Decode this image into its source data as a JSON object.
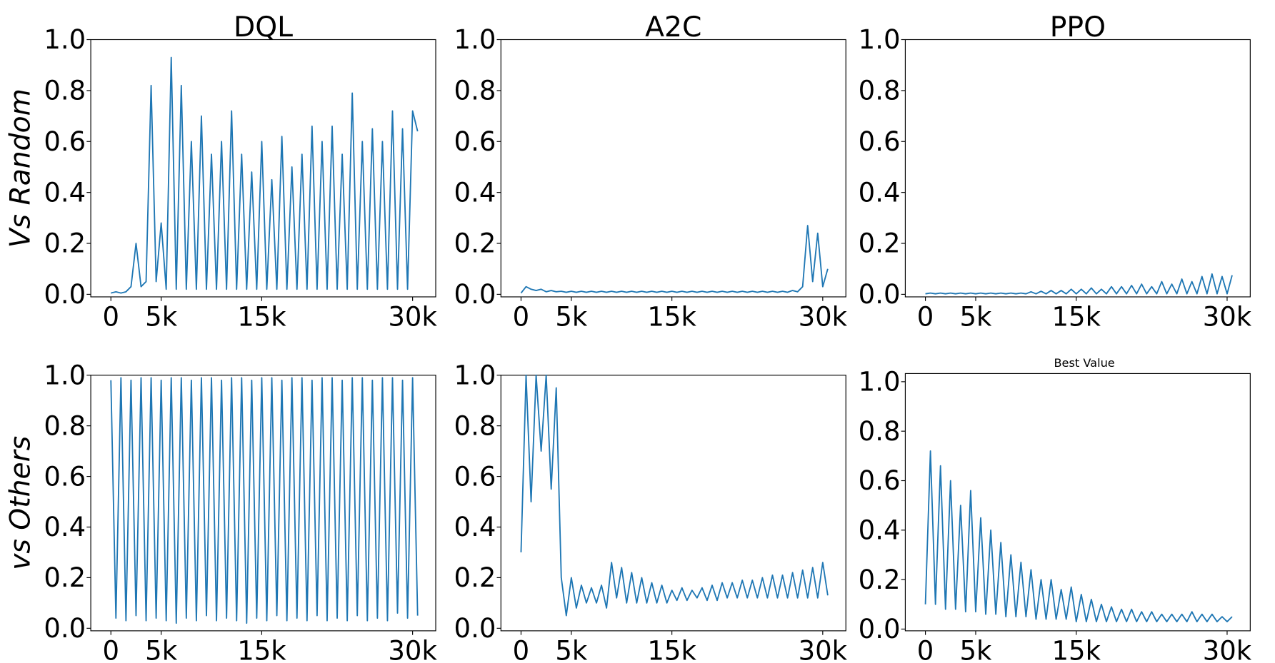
{
  "chart_data": [
    {
      "type": "line",
      "title": "DQL",
      "ylabel": "Vs Random",
      "color": "#1f77b4",
      "x": [
        0,
        500,
        1000,
        1500,
        2000,
        2500,
        3000,
        3500,
        4000,
        4500,
        5000,
        5500,
        6000,
        6500,
        7000,
        7500,
        8000,
        8500,
        9000,
        9500,
        10000,
        10500,
        11000,
        11500,
        12000,
        12500,
        13000,
        13500,
        14000,
        14500,
        15000,
        15500,
        16000,
        16500,
        17000,
        17500,
        18000,
        18500,
        19000,
        19500,
        20000,
        20500,
        21000,
        21500,
        22000,
        22500,
        23000,
        23500,
        24000,
        24500,
        25000,
        25500,
        26000,
        26500,
        27000,
        27500,
        28000,
        28500,
        29000,
        29500,
        30000,
        30500
      ],
      "values": [
        0.005,
        0.01,
        0.005,
        0.01,
        0.03,
        0.2,
        0.03,
        0.05,
        0.82,
        0.05,
        0.28,
        0.02,
        0.93,
        0.02,
        0.82,
        0.02,
        0.6,
        0.02,
        0.7,
        0.02,
        0.55,
        0.02,
        0.6,
        0.02,
        0.72,
        0.02,
        0.55,
        0.02,
        0.48,
        0.02,
        0.6,
        0.02,
        0.45,
        0.02,
        0.62,
        0.02,
        0.5,
        0.02,
        0.55,
        0.02,
        0.66,
        0.02,
        0.6,
        0.02,
        0.66,
        0.02,
        0.55,
        0.02,
        0.79,
        0.02,
        0.6,
        0.02,
        0.65,
        0.02,
        0.6,
        0.02,
        0.72,
        0.02,
        0.65,
        0.02,
        0.72,
        0.64
      ],
      "xlim": [
        -2000,
        32300
      ],
      "xticks": [
        0,
        {
          "value": 5000,
          "label": "5k"
        },
        {
          "value": 15000,
          "label": "15k"
        },
        {
          "value": 30000,
          "label": "30k"
        }
      ],
      "ylim": [
        -0.01,
        1.0
      ],
      "yticks": [
        {
          "value": 0,
          "label": "0.0"
        },
        0.2,
        0.4,
        0.6,
        0.8,
        {
          "value": 1,
          "label": "1.0"
        }
      ]
    },
    {
      "type": "line",
      "title": "A2C",
      "color": "#1f77b4",
      "x": [
        0,
        500,
        1000,
        1500,
        2000,
        2500,
        3000,
        3500,
        4000,
        4500,
        5000,
        5500,
        6000,
        6500,
        7000,
        7500,
        8000,
        8500,
        9000,
        9500,
        10000,
        10500,
        11000,
        11500,
        12000,
        12500,
        13000,
        13500,
        14000,
        14500,
        15000,
        15500,
        16000,
        16500,
        17000,
        17500,
        18000,
        18500,
        19000,
        19500,
        20000,
        20500,
        21000,
        21500,
        22000,
        22500,
        23000,
        23500,
        24000,
        24500,
        25000,
        25500,
        26000,
        26500,
        27000,
        27500,
        28000,
        28500,
        29000,
        29500,
        30000,
        30500
      ],
      "values": [
        0.005,
        0.03,
        0.02,
        0.015,
        0.02,
        0.01,
        0.015,
        0.01,
        0.012,
        0.008,
        0.012,
        0.008,
        0.012,
        0.008,
        0.012,
        0.008,
        0.012,
        0.008,
        0.012,
        0.008,
        0.012,
        0.008,
        0.012,
        0.008,
        0.012,
        0.008,
        0.012,
        0.008,
        0.012,
        0.008,
        0.012,
        0.008,
        0.012,
        0.008,
        0.012,
        0.008,
        0.012,
        0.008,
        0.012,
        0.008,
        0.012,
        0.008,
        0.012,
        0.008,
        0.012,
        0.008,
        0.012,
        0.008,
        0.012,
        0.008,
        0.012,
        0.008,
        0.012,
        0.008,
        0.015,
        0.01,
        0.03,
        0.27,
        0.05,
        0.24,
        0.03,
        0.1
      ],
      "xlim": [
        -2000,
        32300
      ],
      "xticks": [
        0,
        {
          "value": 5000,
          "label": "5k"
        },
        {
          "value": 15000,
          "label": "15k"
        },
        {
          "value": 30000,
          "label": "30k"
        }
      ],
      "ylim": [
        -0.01,
        1.0
      ],
      "yticks": [
        {
          "value": 0,
          "label": "0.0"
        },
        0.2,
        0.4,
        0.6,
        0.8,
        {
          "value": 1,
          "label": "1.0"
        }
      ]
    },
    {
      "type": "line",
      "title": "PPO",
      "color": "#1f77b4",
      "x": [
        0,
        500,
        1000,
        1500,
        2000,
        2500,
        3000,
        3500,
        4000,
        4500,
        5000,
        5500,
        6000,
        6500,
        7000,
        7500,
        8000,
        8500,
        9000,
        9500,
        10000,
        10500,
        11000,
        11500,
        12000,
        12500,
        13000,
        13500,
        14000,
        14500,
        15000,
        15500,
        16000,
        16500,
        17000,
        17500,
        18000,
        18500,
        19000,
        19500,
        20000,
        20500,
        21000,
        21500,
        22000,
        22500,
        23000,
        23500,
        24000,
        24500,
        25000,
        25500,
        26000,
        26500,
        27000,
        27500,
        28000,
        28500,
        29000,
        29500,
        30000,
        30500
      ],
      "values": [
        0.002,
        0.005,
        0.002,
        0.005,
        0.002,
        0.005,
        0.002,
        0.005,
        0.002,
        0.005,
        0.002,
        0.005,
        0.002,
        0.005,
        0.002,
        0.005,
        0.002,
        0.005,
        0.002,
        0.005,
        0.002,
        0.01,
        0.002,
        0.012,
        0.002,
        0.015,
        0.002,
        0.015,
        0.002,
        0.02,
        0.002,
        0.02,
        0.002,
        0.025,
        0.002,
        0.02,
        0.002,
        0.03,
        0.002,
        0.03,
        0.002,
        0.035,
        0.002,
        0.04,
        0.002,
        0.03,
        0.002,
        0.05,
        0.002,
        0.04,
        0.002,
        0.06,
        0.002,
        0.05,
        0.002,
        0.07,
        0.002,
        0.08,
        0.002,
        0.07,
        0.002,
        0.075
      ],
      "xlim": [
        -2000,
        32300
      ],
      "xticks": [
        0,
        {
          "value": 5000,
          "label": "5k"
        },
        {
          "value": 15000,
          "label": "15k"
        },
        {
          "value": 30000,
          "label": "30k"
        }
      ],
      "ylim": [
        -0.01,
        1.0
      ],
      "yticks": [
        {
          "value": 0,
          "label": "0.0"
        },
        0.2,
        0.4,
        0.6,
        0.8,
        {
          "value": 1,
          "label": "1.0"
        }
      ]
    },
    {
      "type": "line",
      "ylabel": "vs Others",
      "color": "#1f77b4",
      "x": [
        0,
        500,
        1000,
        1500,
        2000,
        2500,
        3000,
        3500,
        4000,
        4500,
        5000,
        5500,
        6000,
        6500,
        7000,
        7500,
        8000,
        8500,
        9000,
        9500,
        10000,
        10500,
        11000,
        11500,
        12000,
        12500,
        13000,
        13500,
        14000,
        14500,
        15000,
        15500,
        16000,
        16500,
        17000,
        17500,
        18000,
        18500,
        19000,
        19500,
        20000,
        20500,
        21000,
        21500,
        22000,
        22500,
        23000,
        23500,
        24000,
        24500,
        25000,
        25500,
        26000,
        26500,
        27000,
        27500,
        28000,
        28500,
        29000,
        29500,
        30000,
        30500
      ],
      "values": [
        0.98,
        0.04,
        0.99,
        0.03,
        0.98,
        0.05,
        0.99,
        0.03,
        0.99,
        0.04,
        0.98,
        0.03,
        0.99,
        0.02,
        0.99,
        0.04,
        0.98,
        0.03,
        0.99,
        0.05,
        0.99,
        0.03,
        0.98,
        0.04,
        0.99,
        0.03,
        0.99,
        0.02,
        0.98,
        0.04,
        0.99,
        0.03,
        0.99,
        0.05,
        0.98,
        0.03,
        0.99,
        0.04,
        0.99,
        0.03,
        0.98,
        0.05,
        0.99,
        0.03,
        0.99,
        0.04,
        0.98,
        0.03,
        0.99,
        0.05,
        0.99,
        0.03,
        0.98,
        0.04,
        0.99,
        0.03,
        0.99,
        0.06,
        0.98,
        0.04,
        0.99,
        0.05
      ],
      "xlim": [
        -2000,
        32300
      ],
      "xticks": [
        0,
        {
          "value": 5000,
          "label": "5k"
        },
        {
          "value": 15000,
          "label": "15k"
        },
        {
          "value": 30000,
          "label": "30k"
        }
      ],
      "ylim": [
        -0.01,
        1.0
      ],
      "yticks": [
        {
          "value": 0,
          "label": "0.0"
        },
        0.2,
        0.4,
        0.6,
        0.8,
        {
          "value": 1,
          "label": "1.0"
        }
      ]
    },
    {
      "type": "line",
      "color": "#1f77b4",
      "x": [
        0,
        500,
        1000,
        1500,
        2000,
        2500,
        3000,
        3500,
        4000,
        4500,
        5000,
        5500,
        6000,
        6500,
        7000,
        7500,
        8000,
        8500,
        9000,
        9500,
        10000,
        10500,
        11000,
        11500,
        12000,
        12500,
        13000,
        13500,
        14000,
        14500,
        15000,
        15500,
        16000,
        16500,
        17000,
        17500,
        18000,
        18500,
        19000,
        19500,
        20000,
        20500,
        21000,
        21500,
        22000,
        22500,
        23000,
        23500,
        24000,
        24500,
        25000,
        25500,
        26000,
        26500,
        27000,
        27500,
        28000,
        28500,
        29000,
        29500,
        30000,
        30500
      ],
      "values": [
        0.3,
        1.0,
        0.5,
        1.0,
        0.7,
        1.0,
        0.55,
        0.95,
        0.2,
        0.05,
        0.2,
        0.08,
        0.17,
        0.1,
        0.16,
        0.1,
        0.17,
        0.08,
        0.26,
        0.12,
        0.24,
        0.1,
        0.22,
        0.1,
        0.2,
        0.1,
        0.18,
        0.1,
        0.17,
        0.1,
        0.15,
        0.11,
        0.16,
        0.11,
        0.15,
        0.12,
        0.16,
        0.11,
        0.17,
        0.11,
        0.18,
        0.12,
        0.18,
        0.12,
        0.19,
        0.12,
        0.19,
        0.12,
        0.2,
        0.12,
        0.21,
        0.12,
        0.21,
        0.12,
        0.22,
        0.12,
        0.23,
        0.12,
        0.24,
        0.12,
        0.26,
        0.13
      ],
      "xlim": [
        -2000,
        32300
      ],
      "xticks": [
        0,
        {
          "value": 5000,
          "label": "5k"
        },
        {
          "value": 15000,
          "label": "15k"
        },
        {
          "value": 30000,
          "label": "30k"
        }
      ],
      "ylim": [
        -0.01,
        1.0
      ],
      "yticks": [
        {
          "value": 0,
          "label": "0.0"
        },
        0.2,
        0.4,
        0.6,
        0.8,
        {
          "value": 1,
          "label": "1.0"
        }
      ]
    },
    {
      "type": "line",
      "title": "Best Value",
      "color": "#1f77b4",
      "x": [
        0,
        500,
        1000,
        1500,
        2000,
        2500,
        3000,
        3500,
        4000,
        4500,
        5000,
        5500,
        6000,
        6500,
        7000,
        7500,
        8000,
        8500,
        9000,
        9500,
        10000,
        10500,
        11000,
        11500,
        12000,
        12500,
        13000,
        13500,
        14000,
        14500,
        15000,
        15500,
        16000,
        16500,
        17000,
        17500,
        18000,
        18500,
        19000,
        19500,
        20000,
        20500,
        21000,
        21500,
        22000,
        22500,
        23000,
        23500,
        24000,
        24500,
        25000,
        25500,
        26000,
        26500,
        27000,
        27500,
        28000,
        28500,
        29000,
        29500,
        30000,
        30500
      ],
      "values": [
        0.1,
        0.72,
        0.1,
        0.66,
        0.08,
        0.6,
        0.08,
        0.5,
        0.07,
        0.56,
        0.07,
        0.45,
        0.06,
        0.4,
        0.06,
        0.35,
        0.05,
        0.3,
        0.05,
        0.27,
        0.05,
        0.24,
        0.04,
        0.2,
        0.04,
        0.2,
        0.04,
        0.16,
        0.04,
        0.17,
        0.03,
        0.14,
        0.03,
        0.12,
        0.03,
        0.1,
        0.03,
        0.09,
        0.03,
        0.08,
        0.03,
        0.08,
        0.03,
        0.07,
        0.03,
        0.07,
        0.03,
        0.06,
        0.03,
        0.06,
        0.03,
        0.06,
        0.03,
        0.07,
        0.03,
        0.06,
        0.03,
        0.06,
        0.03,
        0.05,
        0.03,
        0.05
      ],
      "xlim": [
        -2000,
        32300
      ],
      "xticks": [
        0,
        {
          "value": 5000,
          "label": "5k"
        },
        {
          "value": 15000,
          "label": "15k"
        },
        {
          "value": 30000,
          "label": "30k"
        }
      ],
      "ylim": [
        -0.007,
        1.033
      ],
      "yticks": [
        {
          "value": 0,
          "label": "0.0"
        },
        0.2,
        0.4,
        0.6,
        0.8,
        {
          "value": 1,
          "label": "1.0"
        }
      ]
    }
  ]
}
